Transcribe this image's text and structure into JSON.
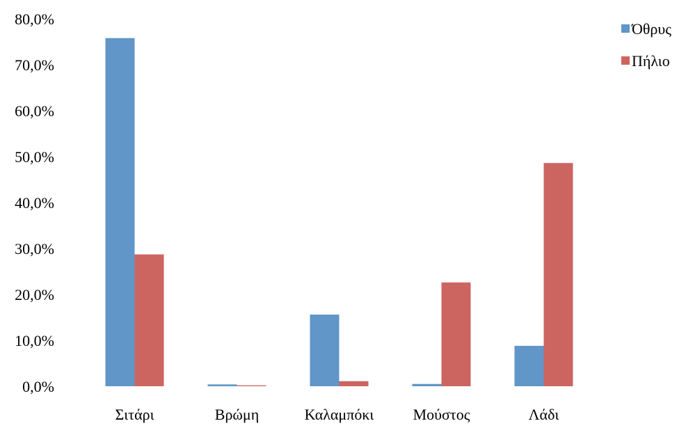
{
  "chart_data": {
    "type": "bar",
    "categories": [
      "Σιτάρι",
      "Βρώμη",
      "Καλαμπόκι",
      "Μούστος",
      "Λάδι"
    ],
    "series": [
      {
        "name": "Όθρυς",
        "values": [
          75.8,
          0.4,
          15.6,
          0.5,
          8.8
        ],
        "color": "#6096C8"
      },
      {
        "name": "Πήλιο",
        "values": [
          28.7,
          0.2,
          1.1,
          22.6,
          48.6
        ],
        "color": "#CC6560"
      }
    ],
    "y_ticks": [
      "0,0%",
      "10,0%",
      "20,0%",
      "30,0%",
      "40,0%",
      "50,0%",
      "60,0%",
      "70,0%",
      "80,0%"
    ],
    "ylim": [
      0,
      80
    ],
    "grid": false,
    "legend_position": "top-right",
    "title": "",
    "xlabel": "",
    "ylabel": ""
  }
}
